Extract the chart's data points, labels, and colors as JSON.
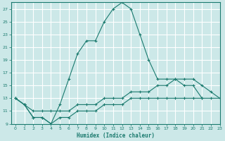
{
  "title": "",
  "xlabel": "Humidex (Indice chaleur)",
  "ylabel": "",
  "background_color": "#cce8e8",
  "grid_color": "#ffffff",
  "line_color": "#1a7a6e",
  "xlim": [
    -0.5,
    23
  ],
  "ylim": [
    9,
    28
  ],
  "xticks": [
    0,
    1,
    2,
    3,
    4,
    5,
    6,
    7,
    8,
    9,
    10,
    11,
    12,
    13,
    14,
    15,
    16,
    17,
    18,
    19,
    20,
    21,
    22,
    23
  ],
  "yticks": [
    9,
    11,
    13,
    15,
    17,
    19,
    21,
    23,
    25,
    27
  ],
  "series1_x": [
    0,
    1,
    2,
    3,
    4,
    5,
    6,
    7,
    8,
    9,
    10,
    11,
    12,
    13,
    14,
    15,
    16,
    17,
    18,
    19,
    20,
    21
  ],
  "series1_y": [
    13,
    12,
    10,
    10,
    9,
    12,
    16,
    20,
    22,
    22,
    25,
    27,
    28,
    27,
    23,
    19,
    16,
    16,
    16,
    15,
    15,
    13
  ],
  "series2_x": [
    0,
    1,
    2,
    3,
    4,
    5,
    6,
    7,
    8,
    9,
    10,
    11,
    12,
    13,
    14,
    15,
    16,
    17,
    18,
    19,
    20,
    21,
    22,
    23
  ],
  "series2_y": [
    13,
    12,
    11,
    11,
    11,
    11,
    11,
    12,
    12,
    12,
    13,
    13,
    13,
    14,
    14,
    14,
    15,
    15,
    16,
    16,
    16,
    15,
    14,
    13
  ],
  "series3_x": [
    0,
    1,
    2,
    3,
    4,
    5,
    6,
    7,
    8,
    9,
    10,
    11,
    12,
    13,
    14,
    15,
    16,
    17,
    18,
    19,
    20,
    21,
    22,
    23
  ],
  "series3_y": [
    13,
    12,
    10,
    10,
    9,
    10,
    10,
    11,
    11,
    11,
    12,
    12,
    12,
    13,
    13,
    13,
    13,
    13,
    13,
    13,
    13,
    13,
    13,
    13
  ]
}
